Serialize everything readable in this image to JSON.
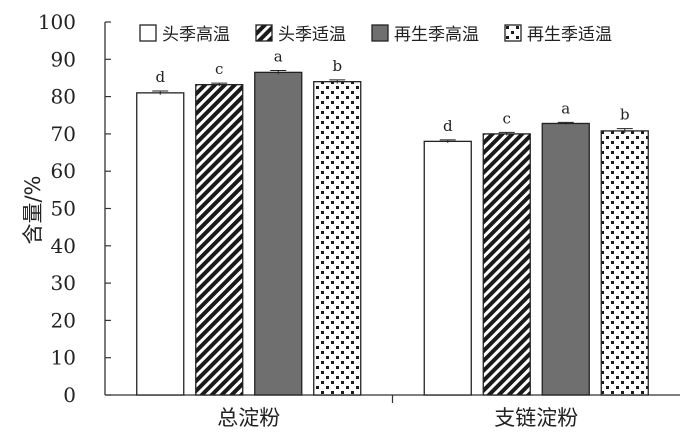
{
  "chart_data": {
    "type": "bar",
    "categories": [
      "总淀粉",
      "支链淀粉"
    ],
    "ylabel": "含量/%",
    "ylim": [
      0,
      100
    ],
    "yticks": [
      0,
      10,
      20,
      30,
      40,
      50,
      60,
      70,
      80,
      90,
      100
    ],
    "grid": false,
    "legend_position": "top",
    "series": [
      {
        "name": "头季高温",
        "values": [
          81.0,
          68.0
        ],
        "errors": [
          0.5,
          0.4
        ],
        "labels": [
          "d",
          "d"
        ],
        "pattern": "white"
      },
      {
        "name": "头季适温",
        "values": [
          83.2,
          70.0
        ],
        "errors": [
          0.4,
          0.4
        ],
        "labels": [
          "c",
          "c"
        ],
        "pattern": "diagonal"
      },
      {
        "name": "再生季高温",
        "values": [
          86.5,
          72.8
        ],
        "errors": [
          0.5,
          0.3
        ],
        "labels": [
          "a",
          "a"
        ],
        "pattern": "gray"
      },
      {
        "name": "再生季适温",
        "values": [
          84.0,
          70.8
        ],
        "errors": [
          0.5,
          0.6
        ],
        "labels": [
          "b",
          "b"
        ],
        "pattern": "dots"
      }
    ]
  }
}
